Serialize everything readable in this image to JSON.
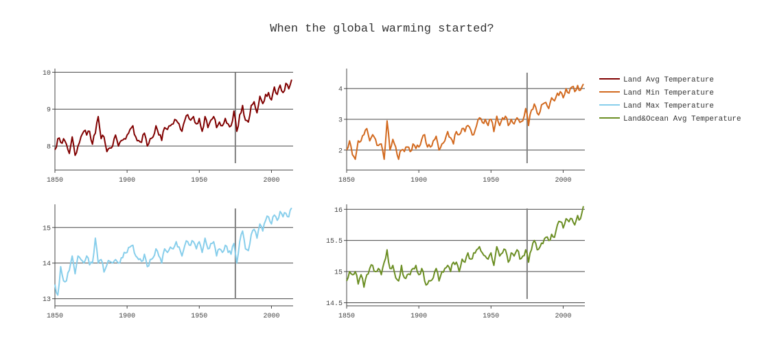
{
  "title": "When the global warming started?",
  "chart_data": [
    {
      "type": "line",
      "name": "Land Avg Temperature",
      "color": "#800000",
      "xlim": [
        1850,
        2015
      ],
      "ylim": [
        7.35,
        10.1
      ],
      "yticks": [
        8,
        9,
        10
      ],
      "ytick_labels": [
        "8",
        "9",
        "10"
      ],
      "xticks": [
        1850,
        1900,
        1950,
        2000
      ],
      "xtick_labels": [
        "1850",
        "1900",
        "1950",
        "2000"
      ],
      "vline": 1975,
      "anchors": [
        [
          1850,
          7.9
        ],
        [
          1852,
          8.2
        ],
        [
          1854,
          8.1
        ],
        [
          1856,
          8.2
        ],
        [
          1858,
          8.05
        ],
        [
          1860,
          7.8
        ],
        [
          1862,
          8.25
        ],
        [
          1864,
          7.75
        ],
        [
          1866,
          8.0
        ],
        [
          1868,
          8.25
        ],
        [
          1870,
          8.4
        ],
        [
          1872,
          8.3
        ],
        [
          1874,
          8.4
        ],
        [
          1876,
          8.05
        ],
        [
          1878,
          8.35
        ],
        [
          1880,
          8.8
        ],
        [
          1882,
          8.2
        ],
        [
          1884,
          8.25
        ],
        [
          1886,
          7.85
        ],
        [
          1888,
          7.95
        ],
        [
          1890,
          8.0
        ],
        [
          1892,
          8.3
        ],
        [
          1894,
          8.0
        ],
        [
          1896,
          8.15
        ],
        [
          1898,
          8.2
        ],
        [
          1900,
          8.3
        ],
        [
          1902,
          8.45
        ],
        [
          1904,
          8.55
        ],
        [
          1906,
          8.25
        ],
        [
          1908,
          8.15
        ],
        [
          1910,
          8.1
        ],
        [
          1912,
          8.35
        ],
        [
          1914,
          8.0
        ],
        [
          1916,
          8.2
        ],
        [
          1918,
          8.25
        ],
        [
          1920,
          8.55
        ],
        [
          1922,
          8.3
        ],
        [
          1924,
          8.15
        ],
        [
          1926,
          8.5
        ],
        [
          1928,
          8.45
        ],
        [
          1930,
          8.55
        ],
        [
          1932,
          8.6
        ],
        [
          1934,
          8.7
        ],
        [
          1936,
          8.6
        ],
        [
          1938,
          8.4
        ],
        [
          1940,
          8.7
        ],
        [
          1942,
          8.85
        ],
        [
          1944,
          8.7
        ],
        [
          1946,
          8.8
        ],
        [
          1948,
          8.6
        ],
        [
          1950,
          8.75
        ],
        [
          1952,
          8.4
        ],
        [
          1954,
          8.8
        ],
        [
          1956,
          8.5
        ],
        [
          1958,
          8.7
        ],
        [
          1960,
          8.8
        ],
        [
          1962,
          8.5
        ],
        [
          1964,
          8.65
        ],
        [
          1966,
          8.55
        ],
        [
          1968,
          8.75
        ],
        [
          1970,
          8.6
        ],
        [
          1972,
          8.55
        ],
        [
          1974,
          8.95
        ],
        [
          1976,
          8.4
        ],
        [
          1978,
          8.85
        ],
        [
          1980,
          9.1
        ],
        [
          1982,
          8.7
        ],
        [
          1984,
          8.65
        ],
        [
          1986,
          9.1
        ],
        [
          1988,
          9.2
        ],
        [
          1990,
          8.9
        ],
        [
          1992,
          9.35
        ],
        [
          1994,
          9.15
        ],
        [
          1996,
          9.4
        ],
        [
          1998,
          9.45
        ],
        [
          2000,
          9.25
        ],
        [
          2002,
          9.6
        ],
        [
          2004,
          9.4
        ],
        [
          2006,
          9.65
        ],
        [
          2008,
          9.45
        ],
        [
          2010,
          9.7
        ],
        [
          2012,
          9.55
        ],
        [
          2014,
          9.8
        ]
      ]
    },
    {
      "type": "line",
      "name": "Land Min Temperature",
      "color": "#d2691e",
      "xlim": [
        1850,
        2015
      ],
      "ylim": [
        1.35,
        4.65
      ],
      "yticks": [
        2,
        3,
        4
      ],
      "ytick_labels": [
        "2",
        "3",
        "4"
      ],
      "xticks": [
        1850,
        1900,
        1950,
        2000
      ],
      "xtick_labels": [
        "1850",
        "1900",
        "1950",
        "2000"
      ],
      "vline": 1975,
      "anchors": [
        [
          1850,
          2.0
        ],
        [
          1852,
          2.3
        ],
        [
          1854,
          1.85
        ],
        [
          1856,
          1.7
        ],
        [
          1858,
          2.3
        ],
        [
          1860,
          2.3
        ],
        [
          1862,
          2.5
        ],
        [
          1864,
          2.7
        ],
        [
          1866,
          2.3
        ],
        [
          1868,
          2.5
        ],
        [
          1870,
          2.35
        ],
        [
          1872,
          2.15
        ],
        [
          1874,
          2.2
        ],
        [
          1876,
          1.7
        ],
        [
          1878,
          2.95
        ],
        [
          1880,
          2.0
        ],
        [
          1882,
          2.35
        ],
        [
          1884,
          2.1
        ],
        [
          1886,
          1.7
        ],
        [
          1888,
          2.0
        ],
        [
          1890,
          1.95
        ],
        [
          1892,
          2.1
        ],
        [
          1894,
          1.95
        ],
        [
          1896,
          2.2
        ],
        [
          1898,
          2.05
        ],
        [
          1900,
          2.1
        ],
        [
          1902,
          2.35
        ],
        [
          1904,
          2.5
        ],
        [
          1906,
          2.1
        ],
        [
          1908,
          2.1
        ],
        [
          1910,
          2.3
        ],
        [
          1912,
          2.45
        ],
        [
          1914,
          2.0
        ],
        [
          1916,
          2.2
        ],
        [
          1918,
          2.3
        ],
        [
          1920,
          2.6
        ],
        [
          1922,
          2.4
        ],
        [
          1924,
          2.2
        ],
        [
          1926,
          2.6
        ],
        [
          1928,
          2.5
        ],
        [
          1930,
          2.7
        ],
        [
          1932,
          2.6
        ],
        [
          1934,
          2.8
        ],
        [
          1936,
          2.65
        ],
        [
          1938,
          2.5
        ],
        [
          1940,
          2.8
        ],
        [
          1942,
          3.05
        ],
        [
          1944,
          2.9
        ],
        [
          1946,
          3.0
        ],
        [
          1948,
          2.8
        ],
        [
          1950,
          3.0
        ],
        [
          1952,
          2.6
        ],
        [
          1954,
          3.1
        ],
        [
          1956,
          2.8
        ],
        [
          1958,
          3.05
        ],
        [
          1960,
          3.1
        ],
        [
          1962,
          2.8
        ],
        [
          1964,
          3.0
        ],
        [
          1966,
          2.85
        ],
        [
          1968,
          3.05
        ],
        [
          1970,
          2.9
        ],
        [
          1972,
          2.95
        ],
        [
          1974,
          3.35
        ],
        [
          1976,
          2.8
        ],
        [
          1978,
          3.3
        ],
        [
          1980,
          3.5
        ],
        [
          1982,
          3.2
        ],
        [
          1984,
          3.25
        ],
        [
          1986,
          3.5
        ],
        [
          1988,
          3.55
        ],
        [
          1990,
          3.35
        ],
        [
          1992,
          3.7
        ],
        [
          1994,
          3.6
        ],
        [
          1996,
          3.85
        ],
        [
          1998,
          3.9
        ],
        [
          2000,
          3.7
        ],
        [
          2002,
          4.0
        ],
        [
          2004,
          3.85
        ],
        [
          2006,
          4.05
        ],
        [
          2008,
          3.9
        ],
        [
          2010,
          4.1
        ],
        [
          2012,
          3.95
        ],
        [
          2014,
          4.15
        ]
      ]
    },
    {
      "type": "line",
      "name": "Land Max Temperature",
      "color": "#87ceeb",
      "xlim": [
        1850,
        2015
      ],
      "ylim": [
        12.8,
        15.65
      ],
      "yticks": [
        13,
        14,
        15
      ],
      "ytick_labels": [
        "13",
        "14",
        "15"
      ],
      "xticks": [
        1850,
        1900,
        1950,
        2000
      ],
      "xtick_labels": [
        "1850",
        "1900",
        "1950",
        "2000"
      ],
      "vline": 1975,
      "anchors": [
        [
          1850,
          13.4
        ],
        [
          1852,
          13.1
        ],
        [
          1854,
          13.9
        ],
        [
          1856,
          13.5
        ],
        [
          1858,
          13.5
        ],
        [
          1860,
          13.8
        ],
        [
          1862,
          14.2
        ],
        [
          1864,
          13.7
        ],
        [
          1866,
          14.2
        ],
        [
          1868,
          14.1
        ],
        [
          1870,
          14.0
        ],
        [
          1872,
          14.2
        ],
        [
          1874,
          13.95
        ],
        [
          1876,
          14.0
        ],
        [
          1878,
          14.7
        ],
        [
          1880,
          14.0
        ],
        [
          1882,
          14.1
        ],
        [
          1884,
          13.75
        ],
        [
          1886,
          13.95
        ],
        [
          1888,
          14.05
        ],
        [
          1890,
          14.0
        ],
        [
          1892,
          14.1
        ],
        [
          1894,
          14.0
        ],
        [
          1896,
          14.15
        ],
        [
          1898,
          14.3
        ],
        [
          1900,
          14.3
        ],
        [
          1902,
          14.45
        ],
        [
          1904,
          14.5
        ],
        [
          1906,
          14.2
        ],
        [
          1908,
          14.1
        ],
        [
          1910,
          14.05
        ],
        [
          1912,
          14.25
        ],
        [
          1914,
          13.9
        ],
        [
          1916,
          14.1
        ],
        [
          1918,
          14.15
        ],
        [
          1920,
          14.4
        ],
        [
          1922,
          14.2
        ],
        [
          1924,
          14.0
        ],
        [
          1926,
          14.4
        ],
        [
          1928,
          14.3
        ],
        [
          1930,
          14.45
        ],
        [
          1932,
          14.4
        ],
        [
          1934,
          14.6
        ],
        [
          1936,
          14.45
        ],
        [
          1938,
          14.2
        ],
        [
          1940,
          14.5
        ],
        [
          1942,
          14.6
        ],
        [
          1944,
          14.5
        ],
        [
          1946,
          14.6
        ],
        [
          1948,
          14.4
        ],
        [
          1950,
          14.6
        ],
        [
          1952,
          14.3
        ],
        [
          1954,
          14.7
        ],
        [
          1956,
          14.4
        ],
        [
          1958,
          14.55
        ],
        [
          1960,
          14.6
        ],
        [
          1962,
          14.2
        ],
        [
          1964,
          14.4
        ],
        [
          1966,
          14.3
        ],
        [
          1968,
          14.5
        ],
        [
          1970,
          14.3
        ],
        [
          1972,
          14.25
        ],
        [
          1974,
          14.55
        ],
        [
          1976,
          14.0
        ],
        [
          1978,
          14.6
        ],
        [
          1980,
          14.9
        ],
        [
          1982,
          14.4
        ],
        [
          1984,
          14.35
        ],
        [
          1986,
          14.8
        ],
        [
          1988,
          14.95
        ],
        [
          1990,
          14.7
        ],
        [
          1992,
          15.1
        ],
        [
          1994,
          14.9
        ],
        [
          1996,
          15.2
        ],
        [
          1998,
          15.3
        ],
        [
          2000,
          15.1
        ],
        [
          2002,
          15.35
        ],
        [
          2004,
          15.2
        ],
        [
          2006,
          15.45
        ],
        [
          2008,
          15.3
        ],
        [
          2010,
          15.4
        ],
        [
          2012,
          15.3
        ],
        [
          2014,
          15.55
        ]
      ]
    },
    {
      "type": "line",
      "name": "Land&Ocean Avg Temperature",
      "color": "#6b8e23",
      "xlim": [
        1850,
        2015
      ],
      "ylim": [
        14.45,
        16.08
      ],
      "yticks": [
        14.5,
        15,
        15.5,
        16
      ],
      "ytick_labels": [
        "14.5",
        "15",
        "15.5",
        "16"
      ],
      "xticks": [
        1850,
        1900,
        1950,
        2000
      ],
      "xtick_labels": [
        "1850",
        "1900",
        "1950",
        "2000"
      ],
      "vline": 1975,
      "anchors": [
        [
          1850,
          14.85
        ],
        [
          1852,
          15.0
        ],
        [
          1854,
          14.95
        ],
        [
          1856,
          15.0
        ],
        [
          1858,
          14.8
        ],
        [
          1860,
          14.95
        ],
        [
          1862,
          14.75
        ],
        [
          1864,
          14.95
        ],
        [
          1866,
          15.05
        ],
        [
          1868,
          15.1
        ],
        [
          1870,
          15.0
        ],
        [
          1872,
          15.05
        ],
        [
          1874,
          14.95
        ],
        [
          1876,
          15.15
        ],
        [
          1878,
          15.35
        ],
        [
          1880,
          15.05
        ],
        [
          1882,
          15.1
        ],
        [
          1884,
          14.9
        ],
        [
          1886,
          14.85
        ],
        [
          1888,
          15.1
        ],
        [
          1890,
          14.9
        ],
        [
          1892,
          14.95
        ],
        [
          1894,
          14.95
        ],
        [
          1896,
          15.05
        ],
        [
          1898,
          15.1
        ],
        [
          1900,
          14.95
        ],
        [
          1902,
          15.05
        ],
        [
          1904,
          14.85
        ],
        [
          1906,
          14.8
        ],
        [
          1908,
          14.85
        ],
        [
          1910,
          14.9
        ],
        [
          1912,
          15.05
        ],
        [
          1914,
          14.85
        ],
        [
          1916,
          15.0
        ],
        [
          1918,
          15.05
        ],
        [
          1920,
          15.1
        ],
        [
          1922,
          15.0
        ],
        [
          1924,
          15.15
        ],
        [
          1926,
          15.15
        ],
        [
          1928,
          15.0
        ],
        [
          1930,
          15.2
        ],
        [
          1932,
          15.15
        ],
        [
          1934,
          15.3
        ],
        [
          1936,
          15.2
        ],
        [
          1938,
          15.3
        ],
        [
          1940,
          15.35
        ],
        [
          1942,
          15.4
        ],
        [
          1944,
          15.3
        ],
        [
          1946,
          15.25
        ],
        [
          1948,
          15.2
        ],
        [
          1950,
          15.3
        ],
        [
          1952,
          15.1
        ],
        [
          1954,
          15.4
        ],
        [
          1956,
          15.25
        ],
        [
          1958,
          15.3
        ],
        [
          1960,
          15.35
        ],
        [
          1962,
          15.15
        ],
        [
          1964,
          15.3
        ],
        [
          1966,
          15.25
        ],
        [
          1968,
          15.35
        ],
        [
          1970,
          15.2
        ],
        [
          1972,
          15.25
        ],
        [
          1974,
          15.35
        ],
        [
          1976,
          15.15
        ],
        [
          1978,
          15.35
        ],
        [
          1980,
          15.5
        ],
        [
          1982,
          15.35
        ],
        [
          1984,
          15.4
        ],
        [
          1986,
          15.45
        ],
        [
          1988,
          15.55
        ],
        [
          1990,
          15.5
        ],
        [
          1992,
          15.6
        ],
        [
          1994,
          15.55
        ],
        [
          1996,
          15.75
        ],
        [
          1998,
          15.8
        ],
        [
          2000,
          15.7
        ],
        [
          2002,
          15.85
        ],
        [
          2004,
          15.8
        ],
        [
          2006,
          15.85
        ],
        [
          2008,
          15.75
        ],
        [
          2010,
          15.9
        ],
        [
          2012,
          15.85
        ],
        [
          2014,
          16.05
        ]
      ]
    }
  ]
}
